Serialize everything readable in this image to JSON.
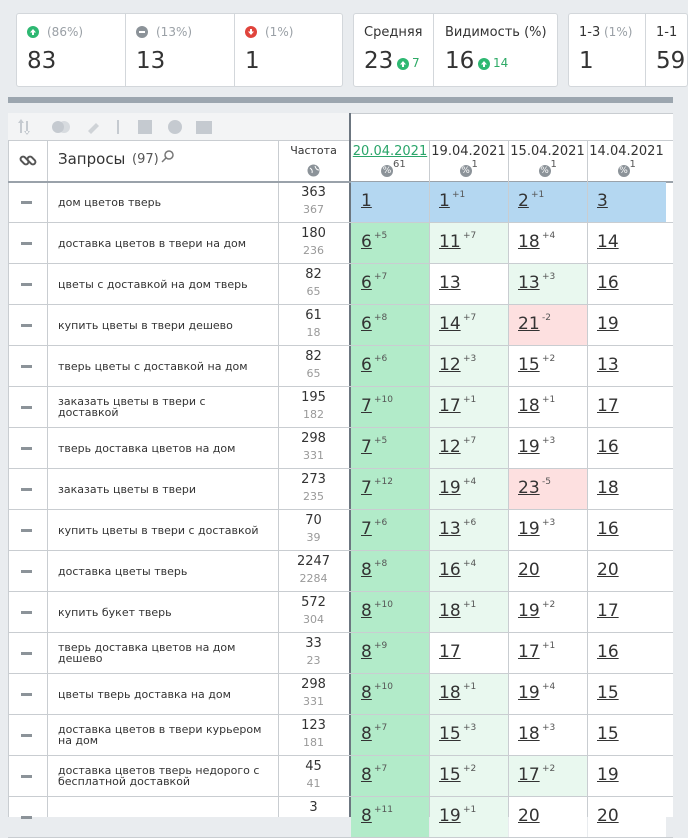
{
  "stats": [
    {
      "pct": "(86%)",
      "value": 83
    },
    {
      "pct": "(13%)",
      "value": 13
    },
    {
      "pct": "(1%)",
      "value": 1
    }
  ],
  "averages": [
    {
      "label": "Средняя",
      "value": 23,
      "change": 7
    },
    {
      "label": "Видимость (%)",
      "value": 16,
      "change": 14
    }
  ],
  "ranges": [
    {
      "label": "1-3",
      "pct": "(1%)",
      "value": 1
    },
    {
      "label": "1-1",
      "value": 59
    }
  ],
  "table": {
    "freq_header": "Частота",
    "query_header": "Запросы",
    "query_count": "(97)",
    "dates": [
      {
        "date": "20.04.2021",
        "count": 61
      },
      {
        "date": "19.04.2021",
        "count": 1
      },
      {
        "date": "15.04.2021",
        "count": 1
      },
      {
        "date": "14.04.2021",
        "count": 1
      }
    ],
    "rows": [
      {
        "query": "дом цветов тверь",
        "freq": 363,
        "freq_prev": 367,
        "positions": [
          {
            "pos": 1
          },
          {
            "pos": 1,
            "change": "+1"
          },
          {
            "pos": 2,
            "change": "+1"
          },
          {
            "pos": 3
          }
        ]
      },
      {
        "query": "доставка цветов в твери на дом",
        "freq": 180,
        "freq_prev": 236,
        "positions": [
          {
            "pos": 6,
            "change": "+5"
          },
          {
            "pos": 11,
            "change": "+7"
          },
          {
            "pos": 18,
            "change": "+4"
          },
          {
            "pos": 14
          }
        ]
      },
      {
        "query": "цветы с доставкой на дом тверь",
        "freq": 82,
        "freq_prev": 65,
        "positions": [
          {
            "pos": 6,
            "change": "+7"
          },
          {
            "pos": 13
          },
          {
            "pos": 13,
            "change": "+3"
          },
          {
            "pos": 16
          }
        ]
      },
      {
        "query": "купить цветы в твери дешево",
        "freq": 61,
        "freq_prev": 18,
        "positions": [
          {
            "pos": 6,
            "change": "+8"
          },
          {
            "pos": 14,
            "change": "+7"
          },
          {
            "pos": 21,
            "change": "-2"
          },
          {
            "pos": 19
          }
        ]
      },
      {
        "query": "тверь цветы с доставкой на дом",
        "freq": 82,
        "freq_prev": 65,
        "positions": [
          {
            "pos": 6,
            "change": "+6"
          },
          {
            "pos": 12,
            "change": "+3"
          },
          {
            "pos": 15,
            "change": "+2"
          },
          {
            "pos": 13
          }
        ]
      },
      {
        "query": "заказать цветы в твери с доставкой",
        "freq": 195,
        "freq_prev": 182,
        "positions": [
          {
            "pos": 7,
            "change": "+10"
          },
          {
            "pos": 17,
            "change": "+1"
          },
          {
            "pos": 18,
            "change": "+1"
          },
          {
            "pos": 17
          }
        ]
      },
      {
        "query": "тверь доставка цветов на дом",
        "freq": 298,
        "freq_prev": 331,
        "positions": [
          {
            "pos": 7,
            "change": "+5"
          },
          {
            "pos": 12,
            "change": "+7"
          },
          {
            "pos": 19,
            "change": "+3"
          },
          {
            "pos": 16
          }
        ]
      },
      {
        "query": "заказать цветы в твери",
        "freq": 273,
        "freq_prev": 235,
        "positions": [
          {
            "pos": 7,
            "change": "+12"
          },
          {
            "pos": 19,
            "change": "+4"
          },
          {
            "pos": 23,
            "change": "-5"
          },
          {
            "pos": 18
          }
        ]
      },
      {
        "query": "купить цветы в твери с доставкой",
        "freq": 70,
        "freq_prev": 39,
        "positions": [
          {
            "pos": 7,
            "change": "+6"
          },
          {
            "pos": 13,
            "change": "+6"
          },
          {
            "pos": 19,
            "change": "+3"
          },
          {
            "pos": 16
          }
        ]
      },
      {
        "query": "доставка цветы тверь",
        "freq": 2247,
        "freq_prev": 2284,
        "positions": [
          {
            "pos": 8,
            "change": "+8"
          },
          {
            "pos": 16,
            "change": "+4"
          },
          {
            "pos": 20
          },
          {
            "pos": 20
          }
        ]
      },
      {
        "query": "купить букет тверь",
        "freq": 572,
        "freq_prev": 304,
        "positions": [
          {
            "pos": 8,
            "change": "+10"
          },
          {
            "pos": 18,
            "change": "+1"
          },
          {
            "pos": 19,
            "change": "+2"
          },
          {
            "pos": 17
          }
        ]
      },
      {
        "query": "тверь доставка цветов на дом дешево",
        "freq": 33,
        "freq_prev": 23,
        "positions": [
          {
            "pos": 8,
            "change": "+9"
          },
          {
            "pos": 17
          },
          {
            "pos": 17,
            "change": "+1"
          },
          {
            "pos": 16
          }
        ]
      },
      {
        "query": "цветы тверь доставка на дом",
        "freq": 298,
        "freq_prev": 331,
        "positions": [
          {
            "pos": 8,
            "change": "+10"
          },
          {
            "pos": 18,
            "change": "+1"
          },
          {
            "pos": 19,
            "change": "+4"
          },
          {
            "pos": 15
          }
        ]
      },
      {
        "query": "доставка цветов в твери курьером на дом",
        "freq": 123,
        "freq_prev": 181,
        "positions": [
          {
            "pos": 8,
            "change": "+7"
          },
          {
            "pos": 15,
            "change": "+3"
          },
          {
            "pos": 18,
            "change": "+3"
          },
          {
            "pos": 15
          }
        ]
      },
      {
        "query": "доставка цветов тверь недорого с бесплатной доставкой",
        "freq": 45,
        "freq_prev": 41,
        "positions": [
          {
            "pos": 8,
            "change": "+7"
          },
          {
            "pos": 15,
            "change": "+2"
          },
          {
            "pos": 17,
            "change": "+2"
          },
          {
            "pos": 19
          }
        ]
      },
      {
        "freq": 3,
        "positions": [
          {
            "pos": 8,
            "change": "+11"
          },
          {
            "pos": 19,
            "change": "+1"
          },
          {
            "pos": 20
          },
          {
            "pos": 20
          }
        ]
      }
    ]
  }
}
